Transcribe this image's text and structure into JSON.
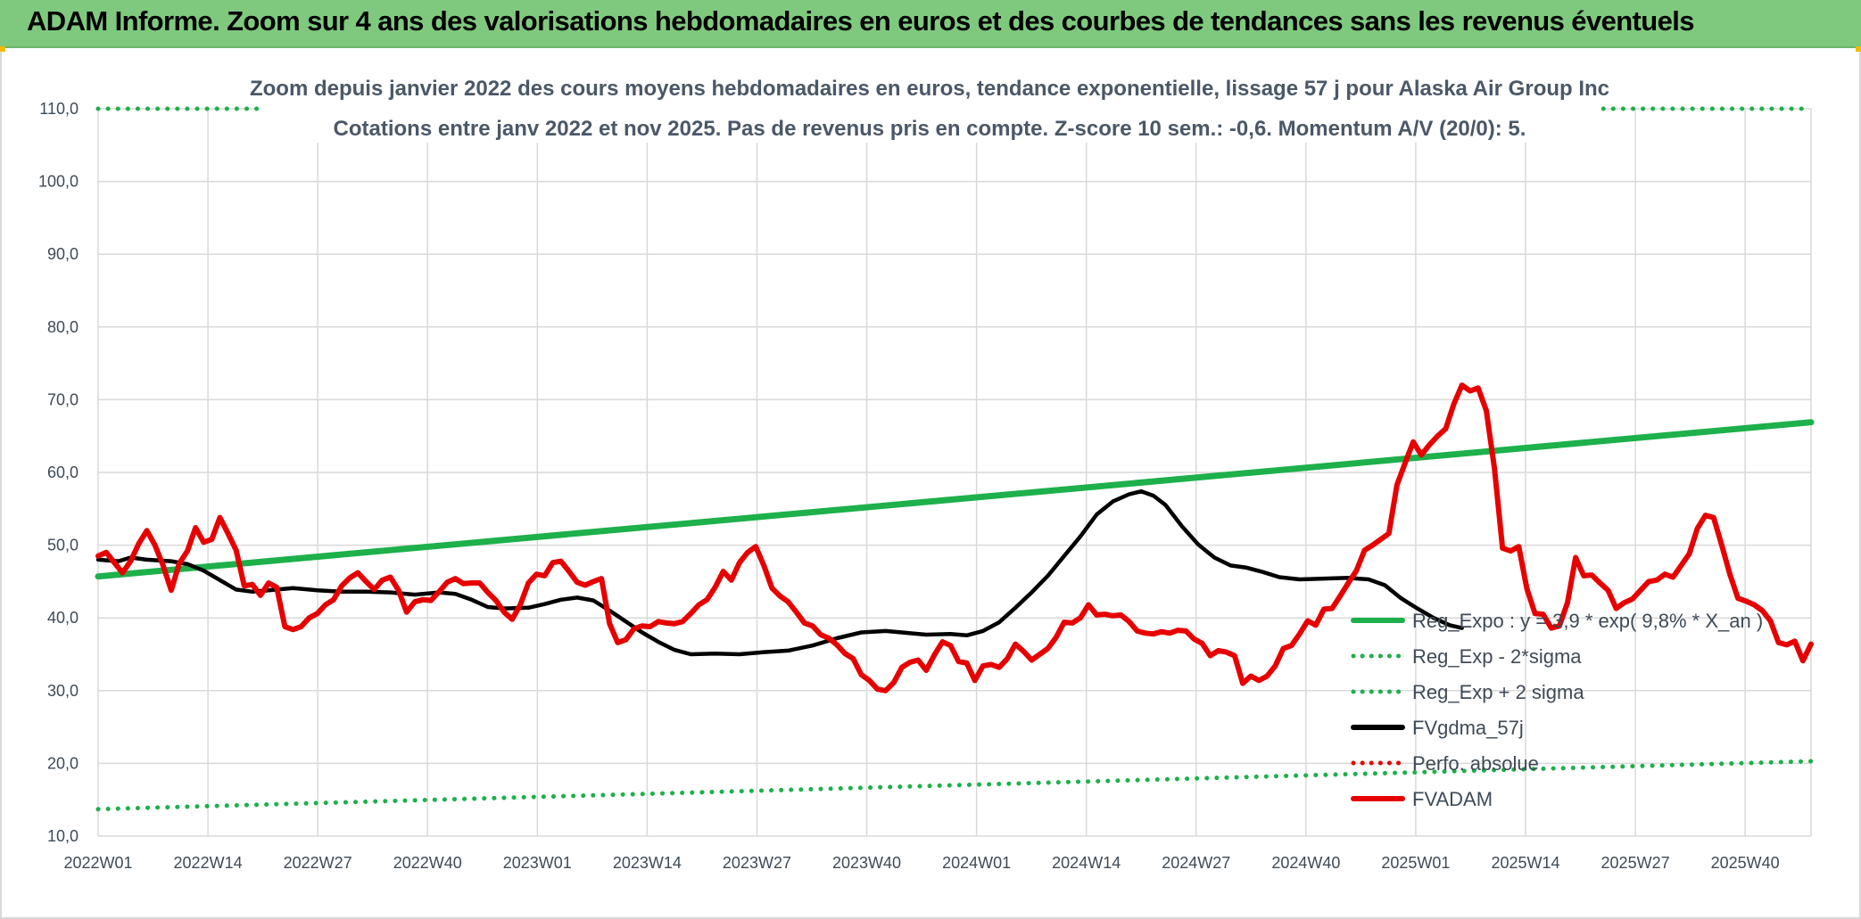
{
  "banner": {
    "title": "ADAM Informe. Zoom sur 4 ans des valorisations hebdomadaires en euros et des courbes de tendances sans les revenus éventuels"
  },
  "chart_data": {
    "type": "line",
    "title": "Zoom depuis janvier 2022 des cours moyens hebdomadaires en euros, tendance exponentielle, lissage 57 j pour Alaska Air Group Inc",
    "subtitle": "Cotations entre janv 2022 et nov 2025. Pas de revenus pris en compte. Z-score 10 sem.: -0,6. Momentum A/V (20/0): 5.",
    "xlabel": "",
    "ylabel": "",
    "ylim": [
      10,
      110
    ],
    "yticks": [
      "10,0",
      "20,0",
      "30,0",
      "40,0",
      "50,0",
      "60,0",
      "70,0",
      "80,0",
      "90,0",
      "100,0",
      "110,0"
    ],
    "xticks": [
      "2022W01",
      "2022W14",
      "2022W27",
      "2022W40",
      "2023W01",
      "2023W14",
      "2023W27",
      "2023W40",
      "2024W01",
      "2024W14",
      "2024W27",
      "2024W40",
      "2025W01",
      "2025W14",
      "2025W27",
      "2025W40"
    ],
    "grid": true,
    "legend_position": "right",
    "series": [
      {
        "name": "Reg_Expo : y = 3,9 * exp( 9,8% *  X_an )",
        "color": "#1db04b",
        "style": "solid",
        "points": [
          [
            0,
            45.7
          ],
          [
            205,
            66.9
          ]
        ]
      },
      {
        "name": "Reg_Exp - 2*sigma",
        "color": "#1db04b",
        "style": "dotted",
        "points": [
          [
            0,
            13.7
          ],
          [
            205,
            20.3
          ]
        ]
      },
      {
        "name": "Reg_Exp + 2 sigma",
        "color": "#1db04b",
        "style": "dotted",
        "points": [
          [
            0,
            110
          ],
          [
            205,
            110
          ]
        ]
      },
      {
        "name": "FVgdma_57j",
        "color": "#000000",
        "style": "solid",
        "points": [
          [
            0,
            48
          ],
          [
            5,
            47.8
          ],
          [
            8,
            48.3
          ],
          [
            12,
            48
          ],
          [
            18,
            47.8
          ],
          [
            22,
            47.4
          ],
          [
            26,
            46.5
          ],
          [
            30,
            45.2
          ],
          [
            34,
            43.9
          ],
          [
            38,
            43.6
          ],
          [
            42,
            43.8
          ],
          [
            48,
            44.1
          ],
          [
            54,
            43.8
          ],
          [
            60,
            43.6
          ],
          [
            66,
            43.6
          ],
          [
            72,
            43.5
          ],
          [
            78,
            43.2
          ],
          [
            84,
            43.5
          ],
          [
            88,
            43.3
          ],
          [
            92,
            42.5
          ],
          [
            96,
            41.5
          ],
          [
            100,
            41.3
          ],
          [
            106,
            41.4
          ],
          [
            110,
            41.9
          ],
          [
            114,
            42.5
          ],
          [
            118,
            42.8
          ],
          [
            122,
            42.4
          ],
          [
            126,
            41
          ],
          [
            130,
            39.5
          ],
          [
            134,
            38
          ],
          [
            138,
            36.7
          ],
          [
            142,
            35.6
          ],
          [
            146,
            35
          ],
          [
            152,
            35.1
          ],
          [
            158,
            35
          ],
          [
            164,
            35.3
          ],
          [
            170,
            35.5
          ],
          [
            176,
            36.2
          ],
          [
            182,
            37.2
          ],
          [
            188,
            38
          ],
          [
            194,
            38.2
          ],
          [
            198,
            38
          ],
          [
            204,
            37.7
          ],
          [
            210,
            37.8
          ],
          [
            214,
            37.6
          ],
          [
            218,
            38.2
          ],
          [
            222,
            39.4
          ],
          [
            226,
            41.4
          ],
          [
            230,
            43.5
          ],
          [
            234,
            45.8
          ],
          [
            238,
            48.5
          ],
          [
            242,
            51.2
          ],
          [
            246,
            54.2
          ],
          [
            250,
            56
          ],
          [
            254,
            57
          ],
          [
            257,
            57.4
          ],
          [
            260,
            56.8
          ],
          [
            263,
            55.5
          ],
          [
            267,
            52.6
          ],
          [
            271,
            50.1
          ],
          [
            275,
            48.3
          ],
          [
            279,
            47.2
          ],
          [
            283,
            46.9
          ],
          [
            287,
            46.3
          ],
          [
            291,
            45.6
          ],
          [
            296,
            45.3
          ],
          [
            302,
            45.4
          ],
          [
            308,
            45.5
          ],
          [
            313,
            45.3
          ],
          [
            317,
            44.5
          ],
          [
            321,
            42.7
          ],
          [
            325,
            41.3
          ],
          [
            329,
            40
          ],
          [
            333,
            39
          ],
          [
            336,
            38.6
          ]
        ]
      },
      {
        "name": "Perfo. absolue",
        "color": "#e60000",
        "style": "dotted",
        "points": []
      },
      {
        "name": "FVADAM",
        "color": "#e60000",
        "style": "solid",
        "points": [
          [
            0,
            48.5
          ],
          [
            2,
            49
          ],
          [
            4,
            47.6
          ],
          [
            6,
            46.2
          ],
          [
            8,
            47.8
          ],
          [
            10,
            50.2
          ],
          [
            12,
            52
          ],
          [
            14,
            50
          ],
          [
            16,
            47.2
          ],
          [
            18,
            43.8
          ],
          [
            20,
            47.5
          ],
          [
            22,
            49.2
          ],
          [
            24,
            52.4
          ],
          [
            26,
            50.4
          ],
          [
            28,
            50.8
          ],
          [
            30,
            53.8
          ],
          [
            32,
            51.6
          ],
          [
            34,
            49.3
          ],
          [
            36,
            44.4
          ],
          [
            38,
            44.6
          ],
          [
            40,
            43.1
          ],
          [
            42,
            44.8
          ],
          [
            44,
            44.2
          ],
          [
            46,
            38.8
          ],
          [
            48,
            38.4
          ],
          [
            50,
            38.8
          ],
          [
            52,
            40
          ],
          [
            54,
            40.6
          ],
          [
            56,
            41.8
          ],
          [
            58,
            42.5
          ],
          [
            60,
            44.4
          ],
          [
            62,
            45.5
          ],
          [
            64,
            46.2
          ],
          [
            66,
            45
          ],
          [
            68,
            43.9
          ],
          [
            70,
            45.2
          ],
          [
            72,
            45.6
          ],
          [
            74,
            43.8
          ],
          [
            76,
            40.8
          ],
          [
            78,
            42.2
          ],
          [
            80,
            42.5
          ],
          [
            82,
            42.4
          ],
          [
            84,
            43.6
          ],
          [
            86,
            44.9
          ],
          [
            88,
            45.4
          ],
          [
            90,
            44.7
          ],
          [
            92,
            44.8
          ],
          [
            94,
            44.8
          ],
          [
            96,
            43.5
          ],
          [
            98,
            42.4
          ],
          [
            100,
            40.8
          ],
          [
            102,
            39.8
          ],
          [
            104,
            41.8
          ],
          [
            106,
            44.8
          ],
          [
            108,
            46
          ],
          [
            110,
            45.8
          ],
          [
            112,
            47.6
          ],
          [
            114,
            47.8
          ],
          [
            116,
            46.4
          ],
          [
            118,
            44.9
          ],
          [
            120,
            44.5
          ],
          [
            122,
            45
          ],
          [
            124,
            45.4
          ],
          [
            126,
            39.2
          ],
          [
            128,
            36.6
          ],
          [
            130,
            37
          ],
          [
            132,
            38.5
          ],
          [
            134,
            38.9
          ],
          [
            136,
            38.8
          ],
          [
            138,
            39.5
          ],
          [
            140,
            39.3
          ],
          [
            142,
            39.2
          ],
          [
            144,
            39.5
          ],
          [
            146,
            40.6
          ],
          [
            148,
            41.8
          ],
          [
            150,
            42.5
          ],
          [
            152,
            44.2
          ],
          [
            154,
            46.4
          ],
          [
            156,
            45.2
          ],
          [
            158,
            47.6
          ],
          [
            160,
            49
          ],
          [
            162,
            49.8
          ],
          [
            164,
            47.2
          ],
          [
            166,
            44.1
          ],
          [
            168,
            43
          ],
          [
            170,
            42.2
          ],
          [
            172,
            40.8
          ],
          [
            174,
            39.3
          ],
          [
            176,
            38.9
          ],
          [
            178,
            37.7
          ],
          [
            180,
            37.2
          ],
          [
            182,
            36.3
          ],
          [
            184,
            35.1
          ],
          [
            186,
            34.4
          ],
          [
            188,
            32.2
          ],
          [
            190,
            31.4
          ],
          [
            192,
            30.2
          ],
          [
            194,
            30
          ],
          [
            196,
            31.1
          ],
          [
            198,
            33.2
          ],
          [
            200,
            33.9
          ],
          [
            202,
            34.2
          ],
          [
            204,
            32.8
          ],
          [
            206,
            34.9
          ],
          [
            208,
            36.7
          ],
          [
            210,
            36.2
          ],
          [
            212,
            34
          ],
          [
            214,
            33.8
          ],
          [
            216,
            31.4
          ],
          [
            218,
            33.4
          ],
          [
            220,
            33.6
          ],
          [
            222,
            33.2
          ],
          [
            224,
            34.4
          ],
          [
            226,
            36.4
          ],
          [
            228,
            35.4
          ],
          [
            230,
            34.2
          ],
          [
            232,
            35
          ],
          [
            234,
            35.8
          ],
          [
            236,
            37.3
          ],
          [
            238,
            39.4
          ],
          [
            240,
            39.3
          ],
          [
            242,
            40
          ],
          [
            244,
            41.8
          ],
          [
            246,
            40.4
          ],
          [
            248,
            40.5
          ],
          [
            250,
            40.3
          ],
          [
            252,
            40.4
          ],
          [
            254,
            39.5
          ],
          [
            256,
            38.2
          ],
          [
            258,
            37.9
          ],
          [
            260,
            37.8
          ],
          [
            262,
            38.1
          ],
          [
            264,
            37.9
          ],
          [
            266,
            38.3
          ],
          [
            268,
            38.2
          ],
          [
            270,
            37.1
          ],
          [
            272,
            36.5
          ],
          [
            274,
            34.8
          ],
          [
            276,
            35.5
          ],
          [
            278,
            35.3
          ],
          [
            280,
            34.8
          ],
          [
            282,
            31
          ],
          [
            284,
            32
          ],
          [
            286,
            31.4
          ],
          [
            288,
            32
          ],
          [
            290,
            33.4
          ],
          [
            292,
            35.8
          ],
          [
            294,
            36.2
          ],
          [
            296,
            37.8
          ],
          [
            298,
            39.6
          ],
          [
            300,
            39
          ],
          [
            302,
            41.2
          ],
          [
            304,
            41.3
          ],
          [
            306,
            43
          ],
          [
            308,
            44.8
          ],
          [
            310,
            46.5
          ],
          [
            312,
            49.3
          ],
          [
            314,
            50
          ],
          [
            316,
            50.8
          ],
          [
            318,
            51.6
          ],
          [
            320,
            58.3
          ],
          [
            322,
            61.3
          ],
          [
            324,
            64.2
          ],
          [
            326,
            62.4
          ],
          [
            328,
            63.8
          ],
          [
            330,
            65
          ],
          [
            332,
            66
          ],
          [
            334,
            69.4
          ],
          [
            336,
            72
          ],
          [
            338,
            71.2
          ],
          [
            340,
            71.6
          ],
          [
            342,
            68.5
          ],
          [
            344,
            60.6
          ],
          [
            346,
            49.6
          ],
          [
            348,
            49.2
          ],
          [
            350,
            49.8
          ],
          [
            352,
            44
          ],
          [
            354,
            40.6
          ],
          [
            356,
            40.5
          ],
          [
            358,
            38.6
          ],
          [
            360,
            38.9
          ],
          [
            362,
            42.1
          ],
          [
            364,
            48.3
          ],
          [
            366,
            45.8
          ],
          [
            368,
            45.9
          ],
          [
            370,
            44.8
          ],
          [
            372,
            43.8
          ],
          [
            374,
            41.3
          ],
          [
            376,
            42.1
          ],
          [
            378,
            42.6
          ],
          [
            380,
            43.8
          ],
          [
            382,
            45
          ],
          [
            384,
            45.2
          ],
          [
            386,
            46
          ],
          [
            388,
            45.6
          ],
          [
            390,
            47.2
          ],
          [
            392,
            48.8
          ],
          [
            394,
            52.3
          ],
          [
            396,
            54.1
          ],
          [
            398,
            53.8
          ],
          [
            400,
            50
          ],
          [
            402,
            46
          ],
          [
            404,
            42.7
          ],
          [
            406,
            42.3
          ],
          [
            408,
            41.8
          ],
          [
            410,
            41
          ],
          [
            412,
            39.6
          ],
          [
            414,
            36.6
          ],
          [
            416,
            36.3
          ],
          [
            418,
            36.8
          ],
          [
            420,
            34.1
          ],
          [
            422,
            36.4
          ]
        ]
      }
    ],
    "x_units": "weeks; 'X' index scaled to full plot width across 2022W01–2025W46"
  }
}
